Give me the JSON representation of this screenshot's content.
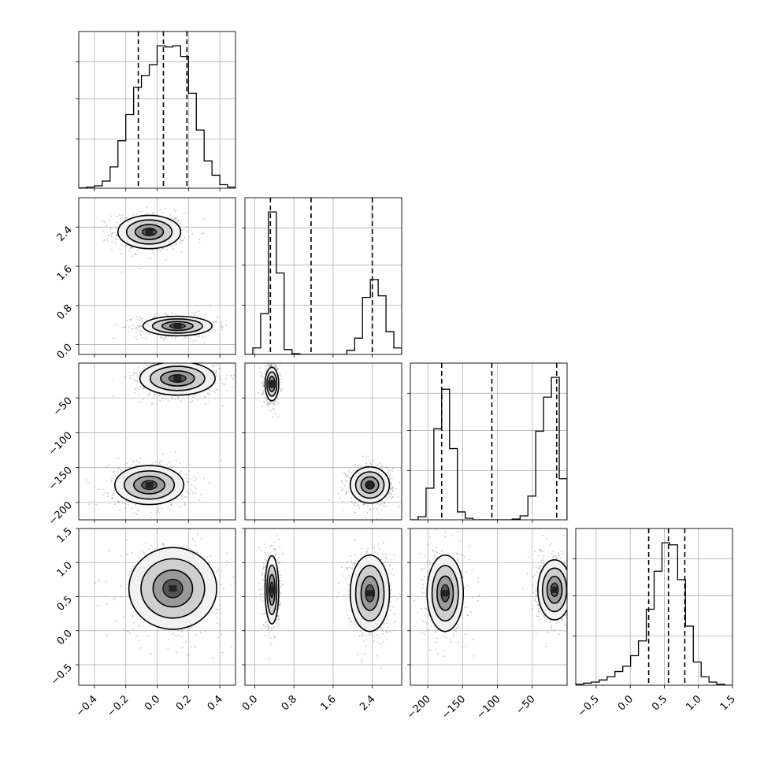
{
  "chart_data": {
    "type": "corner",
    "description_free": true,
    "parameters": 4,
    "grid": true,
    "quantile_style": "dashed",
    "colors": {
      "line": "#000000",
      "grid": "#b0b0b0",
      "density_dark": "#222222",
      "scatter": "#888888"
    },
    "axes": [
      {
        "index": 0,
        "range": [
          -0.5,
          0.5
        ],
        "ticks": [
          -0.4,
          -0.2,
          0.0,
          0.2,
          0.4
        ],
        "tick_labels": [
          "−0.4",
          "−0.2",
          "0.0",
          "0.2",
          "0.4"
        ],
        "quantiles": [
          -0.12,
          0.04,
          0.19
        ],
        "histogram_bins": [
          -0.5,
          -0.45,
          -0.4,
          -0.35,
          -0.3,
          -0.25,
          -0.2,
          -0.15,
          -0.1,
          -0.05,
          0.0,
          0.05,
          0.1,
          0.15,
          0.2,
          0.25,
          0.3,
          0.35,
          0.4,
          0.45,
          0.5
        ],
        "histogram_counts": [
          0.3,
          1,
          2,
          6,
          18,
          40,
          62,
          85,
          95,
          104,
          120,
          119,
          120,
          111,
          80,
          49,
          23,
          11,
          3,
          1
        ]
      },
      {
        "index": 1,
        "range": [
          -0.2,
          3.0
        ],
        "ticks": [
          0.0,
          0.8,
          1.6,
          2.4
        ],
        "tick_labels": [
          "0.0",
          "0.8",
          "1.6",
          "2.4"
        ],
        "quantiles": [
          0.32,
          1.15,
          2.4
        ],
        "histogram_bins": [
          -0.2,
          -0.04,
          0.12,
          0.28,
          0.44,
          0.6,
          0.76,
          0.92,
          1.08,
          1.24,
          1.4,
          1.56,
          1.72,
          1.88,
          2.04,
          2.2,
          2.36,
          2.52,
          2.68,
          2.84,
          3.0
        ],
        "histogram_counts": [
          0,
          8,
          50,
          175,
          100,
          6,
          1,
          0,
          0,
          0,
          0,
          0,
          0,
          5,
          20,
          70,
          92,
          72,
          28,
          8
        ]
      },
      {
        "index": 2,
        "range": [
          -225,
          0
        ],
        "ticks": [
          -200,
          -150,
          -100,
          -50
        ],
        "tick_labels": [
          "−200",
          "−150",
          "−100",
          "−50"
        ],
        "quantiles": [
          -180,
          -108,
          -15
        ],
        "histogram_bins": [
          -225,
          -213.75,
          -202.5,
          -191.25,
          -180,
          -168.75,
          -157.5,
          -146.25,
          -135,
          -123.75,
          -112.5,
          -101.25,
          -90,
          -78.75,
          -67.5,
          -56.25,
          -45,
          -33.75,
          -22.5,
          -11.25,
          0
        ],
        "histogram_counts": [
          0,
          4,
          40,
          115,
          165,
          90,
          10,
          2,
          0,
          0,
          0,
          0,
          0,
          1,
          5,
          30,
          112,
          155,
          180,
          52
        ]
      },
      {
        "index": 3,
        "range": [
          -0.8,
          1.5
        ],
        "ticks": [
          -0.5,
          0.0,
          0.5,
          1.0,
          1.5
        ],
        "tick_labels": [
          "−0.5",
          "0.0",
          "0.5",
          "1.0",
          "1.5"
        ],
        "quantiles": [
          0.27,
          0.56,
          0.8
        ],
        "histogram_bins": [
          -0.8,
          -0.685,
          -0.57,
          -0.455,
          -0.34,
          -0.225,
          -0.11,
          0.005,
          0.12,
          0.235,
          0.35,
          0.465,
          0.58,
          0.695,
          0.81,
          0.925,
          1.04,
          1.155,
          1.27,
          1.385,
          1.5
        ],
        "histogram_counts": [
          1,
          2,
          3,
          5,
          8,
          13,
          18,
          28,
          42,
          72,
          108,
          135,
          133,
          100,
          56,
          22,
          8,
          3,
          1,
          0
        ]
      }
    ],
    "pair_clusters": [
      {
        "x": 0,
        "y": 1,
        "clusters": [
          {
            "cx": -0.05,
            "cy": 2.3,
            "sx": 0.1,
            "sy": 0.17
          },
          {
            "cx": 0.13,
            "cy": 0.38,
            "sx": 0.11,
            "sy": 0.1
          }
        ]
      },
      {
        "x": 0,
        "y": 2,
        "clusters": [
          {
            "cx": 0.13,
            "cy": -22,
            "sx": 0.12,
            "sy": 12
          },
          {
            "cx": -0.05,
            "cy": -175,
            "sx": 0.11,
            "sy": 14
          }
        ]
      },
      {
        "x": 0,
        "y": 3,
        "clusters": [
          {
            "cx": 0.1,
            "cy": 0.62,
            "sx": 0.14,
            "sy": 0.3
          }
        ]
      },
      {
        "x": 1,
        "y": 2,
        "clusters": [
          {
            "cx": 0.35,
            "cy": -30,
            "sx": 0.07,
            "sy": 12
          },
          {
            "cx": 2.35,
            "cy": -175,
            "sx": 0.2,
            "sy": 13
          }
        ]
      },
      {
        "x": 1,
        "y": 3,
        "clusters": [
          {
            "cx": 0.35,
            "cy": 0.6,
            "sx": 0.07,
            "sy": 0.25
          },
          {
            "cx": 2.35,
            "cy": 0.55,
            "sx": 0.2,
            "sy": 0.28
          }
        ]
      },
      {
        "x": 2,
        "y": 3,
        "clusters": [
          {
            "cx": -175,
            "cy": 0.55,
            "sx": 13,
            "sy": 0.28
          },
          {
            "cx": -18,
            "cy": 0.6,
            "sx": 12,
            "sy": 0.22
          }
        ]
      }
    ]
  }
}
